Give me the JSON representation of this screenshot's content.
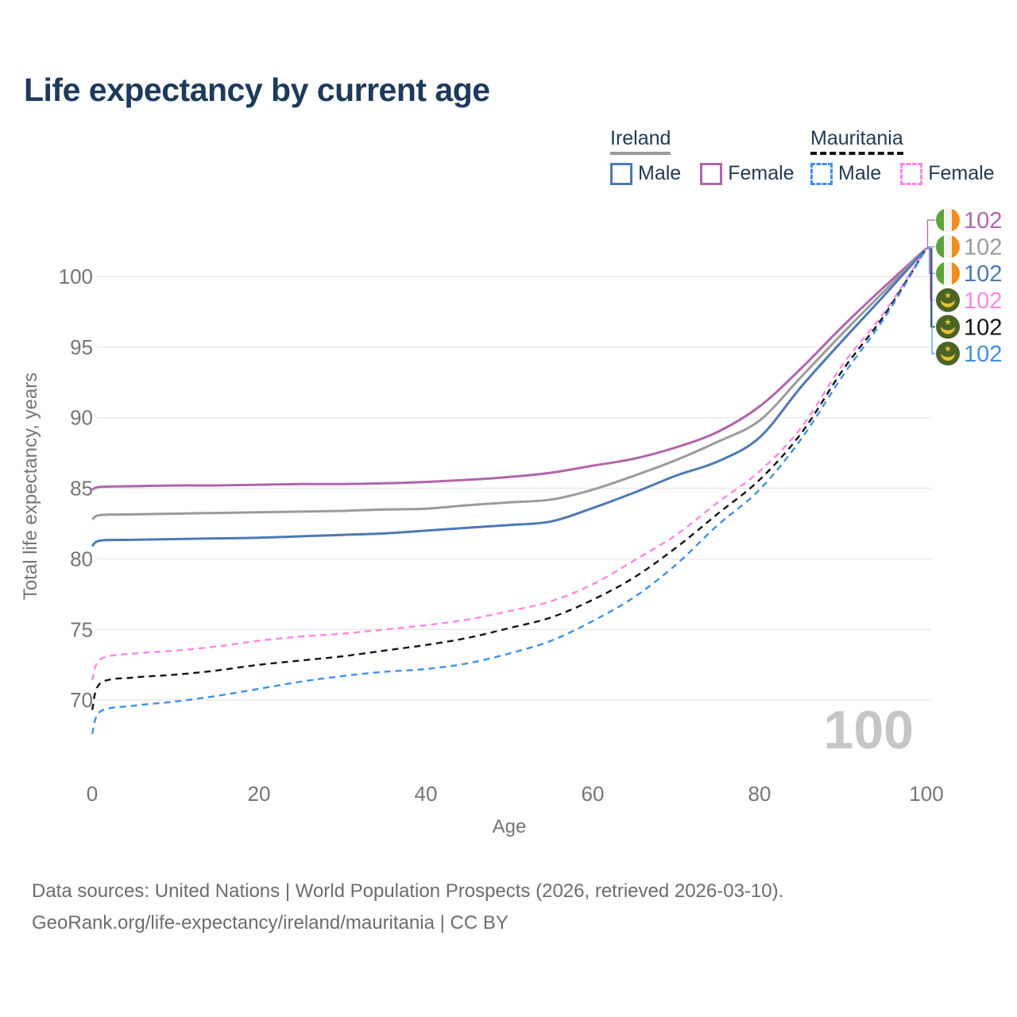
{
  "title": "Life expectancy by current age",
  "watermark": "100",
  "footer": {
    "line1": "Data sources: United Nations | World Population Prospects (2026, retrieved 2026-03-10).",
    "line2": "GeoRank.org/life-expectancy/ireland/mauritania | CC BY"
  },
  "legend": {
    "groups": [
      {
        "id": "ireland",
        "title": "Ireland",
        "underline": "solid",
        "underline_color": "#9b9b9b",
        "items": [
          {
            "id": "ireland-male",
            "label": "Male",
            "color": "#4e79b5",
            "dash": false
          },
          {
            "id": "ireland-female",
            "label": "Female",
            "color": "#b165ab",
            "dash": false
          }
        ]
      },
      {
        "id": "mauritania",
        "title": "Mauritania",
        "underline": "dashed",
        "underline_color": "#141414",
        "items": [
          {
            "id": "mauritania-male",
            "label": "Male",
            "color": "#4190e6",
            "dash": true
          },
          {
            "id": "mauritania-female",
            "label": "Female",
            "color": "#ff87e3",
            "dash": true
          }
        ]
      }
    ]
  },
  "colors": {
    "grid": "#e8e8e8",
    "axis_text": "#757575",
    "title_text": "#1e3a5c",
    "watermark": "#c6c6c6",
    "footer_text": "#6c6c6c",
    "flag_ireland_green": "#5da23f",
    "flag_ireland_white": "#f4f4f1",
    "flag_ireland_orange": "#f08d1f",
    "flag_mauritania_green": "#4a6426",
    "flag_mauritania_gold": "#e6c130"
  },
  "chart_data": {
    "type": "line",
    "title": "Life expectancy by current age",
    "xlabel": "Age",
    "ylabel": "Total life expectancy, years",
    "x_ticks": [
      0,
      20,
      40,
      60,
      80,
      100
    ],
    "y_ticks": [
      70,
      75,
      80,
      85,
      90,
      95,
      100
    ],
    "xlim": [
      0,
      100
    ],
    "ylim": [
      66.5,
      103
    ],
    "grid": "horizontal",
    "legend_position": "top-right",
    "x": [
      0,
      1,
      5,
      10,
      15,
      20,
      25,
      30,
      35,
      40,
      45,
      50,
      55,
      60,
      65,
      70,
      75,
      80,
      85,
      90,
      95,
      100
    ],
    "series": [
      {
        "name": "Ireland Female",
        "country": "Ireland",
        "sex": "Female",
        "color": "#b165ab",
        "style": "solid",
        "flag": "ireland",
        "end_label": "102",
        "values": [
          84.9,
          85.1,
          85.15,
          85.2,
          85.2,
          85.25,
          85.3,
          85.3,
          85.35,
          85.45,
          85.6,
          85.8,
          86.1,
          86.6,
          87.1,
          87.9,
          89.0,
          90.8,
          93.5,
          96.5,
          99.3,
          102
        ]
      },
      {
        "name": "Ireland Both sexes",
        "country": "Ireland",
        "sex": "Both",
        "color": "#9b9b9b",
        "style": "solid",
        "flag": "ireland",
        "end_label": "102",
        "values": [
          82.8,
          83.1,
          83.15,
          83.2,
          83.25,
          83.3,
          83.35,
          83.4,
          83.5,
          83.55,
          83.8,
          84.0,
          84.2,
          84.9,
          85.9,
          87.0,
          88.3,
          89.8,
          92.9,
          96.0,
          99.0,
          102
        ]
      },
      {
        "name": "Ireland Male",
        "country": "Ireland",
        "sex": "Male",
        "color": "#4e79b5",
        "style": "solid",
        "flag": "ireland",
        "end_label": "102",
        "values": [
          80.9,
          81.3,
          81.35,
          81.4,
          81.45,
          81.5,
          81.6,
          81.7,
          81.8,
          82.0,
          82.2,
          82.4,
          82.65,
          83.6,
          84.7,
          85.9,
          86.9,
          88.6,
          92.2,
          95.5,
          98.7,
          102
        ]
      },
      {
        "name": "Mauritania Female",
        "country": "Mauritania",
        "sex": "Female",
        "color": "#ff87e3",
        "style": "dashed",
        "flag": "mauritania",
        "end_label": "102",
        "values": [
          71.4,
          72.9,
          73.3,
          73.5,
          73.8,
          74.2,
          74.5,
          74.7,
          75.0,
          75.3,
          75.7,
          76.3,
          77.0,
          78.2,
          79.9,
          81.7,
          84.0,
          86.2,
          89.3,
          93.8,
          97.5,
          102
        ]
      },
      {
        "name": "Mauritania Both sexes",
        "country": "Mauritania",
        "sex": "Both",
        "color": "#141414",
        "style": "dashed",
        "flag": "mauritania",
        "end_label": "102",
        "values": [
          69.3,
          71.2,
          71.6,
          71.8,
          72.1,
          72.5,
          72.8,
          73.1,
          73.5,
          73.9,
          74.4,
          75.1,
          75.85,
          77.1,
          78.7,
          80.8,
          83.2,
          85.6,
          88.9,
          93.4,
          97.3,
          102
        ]
      },
      {
        "name": "Mauritania Male",
        "country": "Mauritania",
        "sex": "Male",
        "color": "#4190e6",
        "style": "dashed",
        "flag": "mauritania",
        "end_label": "102",
        "values": [
          67.6,
          69.2,
          69.6,
          69.9,
          70.3,
          70.8,
          71.3,
          71.7,
          72.0,
          72.2,
          72.6,
          73.3,
          74.2,
          75.6,
          77.3,
          79.6,
          82.4,
          84.9,
          88.5,
          93.0,
          97.1,
          102
        ]
      }
    ]
  }
}
